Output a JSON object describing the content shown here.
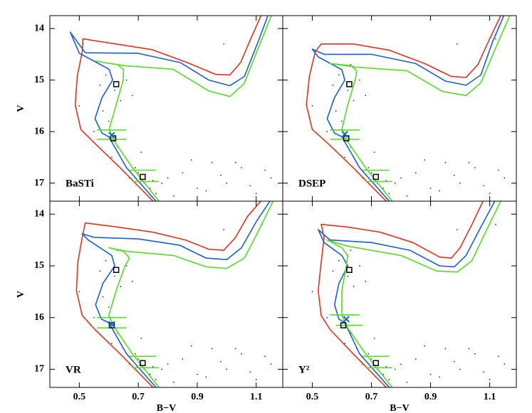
{
  "chart_data": [
    {
      "type": "line",
      "label": "BaSTi",
      "ylabel": "V",
      "xlim": [
        0.4,
        1.19
      ],
      "ylim": [
        17.35,
        13.75
      ],
      "xticks": [
        0.5,
        0.7,
        0.9,
        1.1
      ],
      "yticks": [
        14,
        15,
        16,
        17
      ],
      "stars": {
        "x": [
          0.62,
          0.64,
          0.6,
          0.66,
          0.63,
          0.58,
          0.61,
          0.65,
          0.67,
          0.7,
          0.72,
          0.74,
          0.69,
          0.76,
          0.78,
          0.8,
          0.85,
          0.9,
          0.95,
          1.0,
          1.05,
          1.1,
          1.15,
          0.82,
          0.88,
          0.93,
          0.98,
          1.03,
          1.08,
          1.13,
          0.57,
          0.59,
          0.63,
          0.68,
          0.55,
          0.71,
          0.75,
          0.5,
          1.12,
          0.99
        ],
        "values": [
          15.2,
          15.4,
          15.8,
          15.0,
          16.3,
          15.6,
          16.5,
          16.6,
          16.9,
          16.8,
          17.0,
          17.1,
          16.7,
          17.2,
          17.0,
          16.9,
          16.8,
          17.1,
          16.6,
          17.0,
          16.7,
          17.2,
          16.9,
          17.25,
          16.55,
          17.15,
          16.85,
          16.6,
          17.05,
          16.75,
          15.1,
          14.9,
          14.7,
          15.3,
          16.0,
          16.4,
          16.95,
          15.5,
          14.2,
          14.3
        ]
      },
      "series": [
        {
          "color": "#e8311a",
          "x": [
            0.75,
            0.64,
            0.553,
            0.505,
            0.486,
            0.493,
            0.51,
            0.512,
            0.625,
            0.746,
            0.866,
            0.963,
            1.011,
            1.047,
            1.083,
            1.12
          ],
          "values": [
            17.35,
            16.71,
            16.23,
            15.96,
            15.48,
            14.93,
            14.45,
            14.2,
            14.3,
            14.41,
            14.66,
            14.89,
            14.9,
            14.66,
            14.18,
            13.7
          ]
        },
        {
          "color": "#1a5fd6",
          "x": [
            0.76,
            0.66,
            0.6,
            0.577,
            0.553,
            0.577,
            0.613,
            0.601,
            0.5,
            0.469,
            0.52,
            0.698,
            0.842,
            0.939,
            1.011,
            1.06,
            1.107,
            1.143
          ],
          "values": [
            17.35,
            16.7,
            16.1,
            16.03,
            15.75,
            15.34,
            15.0,
            14.79,
            14.48,
            14.07,
            14.47,
            14.48,
            14.66,
            15.0,
            15.11,
            14.93,
            14.25,
            13.7
          ]
        },
        {
          "color": "#55dd22",
          "x": [
            0.77,
            0.68,
            0.62,
            0.601,
            0.625,
            0.649,
            0.65,
            0.63,
            0.553,
            0.65,
            0.818,
            0.939,
            1.011,
            1.059,
            1.107,
            1.155
          ],
          "values": [
            17.35,
            16.7,
            16.2,
            15.96,
            15.48,
            15.0,
            14.8,
            14.7,
            14.63,
            14.72,
            14.79,
            15.21,
            15.32,
            15.07,
            14.38,
            13.7
          ]
        },
        {
          "color": "#55dd22",
          "x": [
            0.56,
            0.66
          ],
          "values": [
            15.97,
            15.97
          ]
        },
        {
          "color": "#55dd22",
          "x": [
            0.56,
            0.66
          ],
          "values": [
            16.15,
            16.15
          ]
        },
        {
          "color": "#55dd22",
          "x": [
            0.67,
            0.76
          ],
          "values": [
            16.75,
            16.75
          ]
        },
        {
          "color": "#55dd22",
          "x": [
            0.68,
            0.77
          ],
          "values": [
            16.97,
            16.97
          ]
        }
      ],
      "squares": {
        "x": [
          0.625,
          0.615,
          0.715
        ],
        "values": [
          15.08,
          16.13,
          16.88
        ]
      },
      "crosses": {
        "color": "#1a5fd6",
        "x": [
          0.61
        ],
        "values": [
          16.07
        ]
      }
    },
    {
      "type": "line",
      "label": "DSEP",
      "xlim": [
        0.4,
        1.19
      ],
      "ylim": [
        17.35,
        13.75
      ],
      "xticks": [
        0.5,
        0.7,
        0.9,
        1.1
      ],
      "yticks": [
        14,
        15,
        16,
        17
      ],
      "stars": {
        "x": [
          0.62,
          0.64,
          0.6,
          0.66,
          0.63,
          0.58,
          0.61,
          0.65,
          0.67,
          0.7,
          0.72,
          0.74,
          0.69,
          0.76,
          0.78,
          0.8,
          0.85,
          0.9,
          0.95,
          1.0,
          1.05,
          1.1,
          1.15,
          0.82,
          0.88,
          0.93,
          0.98,
          1.03,
          1.08,
          1.13,
          0.57,
          0.59,
          0.63,
          0.68,
          0.55,
          0.71,
          0.75,
          0.5,
          1.12,
          0.99
        ],
        "values": [
          15.2,
          15.4,
          15.8,
          15.0,
          16.3,
          15.6,
          16.5,
          16.6,
          16.9,
          16.8,
          17.0,
          17.1,
          16.7,
          17.2,
          17.0,
          16.9,
          16.8,
          17.1,
          16.6,
          17.0,
          16.7,
          17.2,
          16.9,
          17.25,
          16.55,
          17.15,
          16.85,
          16.6,
          17.05,
          16.75,
          15.1,
          14.9,
          14.7,
          15.3,
          16.0,
          16.4,
          16.95,
          15.5,
          14.2,
          14.3
        ]
      },
      "series": [
        {
          "color": "#e8311a",
          "x": [
            0.75,
            0.64,
            0.553,
            0.5,
            0.48,
            0.49,
            0.51,
            0.53,
            0.64,
            0.76,
            0.88,
            0.97,
            1.02,
            1.06,
            1.1,
            1.14
          ],
          "values": [
            17.35,
            16.71,
            16.23,
            15.96,
            15.48,
            14.93,
            14.45,
            14.3,
            14.3,
            14.42,
            14.68,
            14.93,
            14.95,
            14.7,
            14.2,
            13.72
          ]
        },
        {
          "color": "#1a5fd6",
          "x": [
            0.76,
            0.66,
            0.6,
            0.575,
            0.55,
            0.575,
            0.61,
            0.6,
            0.52,
            0.5,
            0.54,
            0.7,
            0.85,
            0.95,
            1.02,
            1.07,
            1.11,
            1.15
          ],
          "values": [
            17.35,
            16.7,
            16.1,
            16.03,
            15.75,
            15.34,
            15.0,
            14.8,
            14.55,
            14.4,
            14.5,
            14.5,
            14.68,
            15.02,
            15.1,
            14.9,
            14.25,
            13.72
          ]
        },
        {
          "color": "#55dd22",
          "x": [
            0.77,
            0.68,
            0.62,
            0.6,
            0.62,
            0.645,
            0.65,
            0.63,
            0.56,
            0.65,
            0.82,
            0.94,
            1.02,
            1.07,
            1.12,
            1.17
          ],
          "values": [
            17.35,
            16.7,
            16.2,
            15.96,
            15.48,
            15.0,
            14.82,
            14.72,
            14.68,
            14.75,
            14.82,
            15.22,
            15.3,
            15.05,
            14.38,
            13.72
          ]
        },
        {
          "color": "#55dd22",
          "x": [
            0.56,
            0.66
          ],
          "values": [
            15.97,
            15.97
          ]
        },
        {
          "color": "#55dd22",
          "x": [
            0.56,
            0.66
          ],
          "values": [
            16.15,
            16.15
          ]
        },
        {
          "color": "#55dd22",
          "x": [
            0.67,
            0.76
          ],
          "values": [
            16.75,
            16.75
          ]
        },
        {
          "color": "#55dd22",
          "x": [
            0.68,
            0.77
          ],
          "values": [
            16.97,
            16.97
          ]
        }
      ],
      "squares": {
        "x": [
          0.625,
          0.615,
          0.715
        ],
        "values": [
          15.08,
          16.13,
          16.88
        ]
      },
      "crosses": {
        "color": "#1a5fd6",
        "x": [
          0.61
        ],
        "values": [
          16.05
        ]
      }
    },
    {
      "type": "line",
      "label": "VR",
      "ylabel": "V",
      "xlabel": "B−V",
      "xlim": [
        0.4,
        1.19
      ],
      "ylim": [
        17.35,
        13.75
      ],
      "xticks": [
        0.5,
        0.7,
        0.9,
        1.1
      ],
      "yticks": [
        14,
        15,
        16,
        17
      ],
      "stars": {
        "x": [
          0.62,
          0.64,
          0.6,
          0.66,
          0.63,
          0.58,
          0.61,
          0.65,
          0.67,
          0.7,
          0.72,
          0.74,
          0.69,
          0.76,
          0.78,
          0.8,
          0.85,
          0.9,
          0.95,
          1.0,
          1.05,
          1.1,
          1.15,
          0.82,
          0.88,
          0.93,
          0.98,
          1.03,
          1.08,
          1.13,
          0.57,
          0.59,
          0.63,
          0.68,
          0.55,
          0.71,
          0.75,
          0.5,
          1.12,
          0.99
        ],
        "values": [
          15.2,
          15.4,
          15.8,
          15.0,
          16.3,
          15.6,
          16.5,
          16.6,
          16.9,
          16.8,
          17.0,
          17.1,
          16.7,
          17.2,
          17.0,
          16.9,
          16.8,
          17.1,
          16.6,
          17.0,
          16.7,
          17.2,
          16.9,
          17.25,
          16.55,
          17.15,
          16.85,
          16.6,
          17.05,
          16.75,
          15.1,
          14.9,
          14.7,
          15.3,
          16.0,
          16.4,
          16.95,
          15.5,
          14.2,
          14.3
        ]
      },
      "series": [
        {
          "color": "#e8311a",
          "x": [
            0.75,
            0.64,
            0.553,
            0.51,
            0.49,
            0.495,
            0.51,
            0.52,
            0.63,
            0.75,
            0.86,
            0.94,
            0.99,
            1.03,
            1.07,
            1.12
          ],
          "values": [
            17.35,
            16.71,
            16.23,
            15.96,
            15.48,
            14.93,
            14.45,
            14.17,
            14.25,
            14.35,
            14.5,
            14.68,
            14.7,
            14.45,
            14.05,
            13.72
          ]
        },
        {
          "color": "#1a5fd6",
          "x": [
            0.76,
            0.66,
            0.6,
            0.575,
            0.555,
            0.58,
            0.62,
            0.61,
            0.53,
            0.51,
            0.55,
            0.7,
            0.84,
            0.93,
            1.0,
            1.05,
            1.1,
            1.15
          ],
          "values": [
            17.35,
            16.7,
            16.1,
            16.03,
            15.75,
            15.34,
            15.0,
            14.8,
            14.5,
            14.38,
            14.45,
            14.48,
            14.6,
            14.85,
            14.88,
            14.65,
            14.15,
            13.72
          ]
        },
        {
          "color": "#55dd22",
          "x": [
            0.77,
            0.68,
            0.62,
            0.6,
            0.625,
            0.655,
            0.67,
            0.65,
            0.6,
            0.66,
            0.82,
            0.93,
            1.0,
            1.06,
            1.11,
            1.16
          ],
          "values": [
            17.35,
            16.7,
            16.2,
            15.96,
            15.48,
            15.0,
            14.85,
            14.72,
            14.65,
            14.72,
            14.8,
            15.02,
            15.05,
            14.85,
            14.3,
            13.72
          ]
        },
        {
          "color": "#55dd22",
          "x": [
            0.56,
            0.66
          ],
          "values": [
            16.0,
            16.0
          ]
        },
        {
          "color": "#55dd22",
          "x": [
            0.56,
            0.66
          ],
          "values": [
            16.2,
            16.2
          ]
        },
        {
          "color": "#55dd22",
          "x": [
            0.67,
            0.76
          ],
          "values": [
            16.75,
            16.75
          ]
        },
        {
          "color": "#55dd22",
          "x": [
            0.68,
            0.77
          ],
          "values": [
            16.97,
            16.97
          ]
        }
      ],
      "squares": {
        "x": [
          0.625,
          0.61,
          0.715
        ],
        "values": [
          15.08,
          16.15,
          16.88
        ]
      },
      "crosses": {
        "color": "#1a5fd6",
        "x": [
          0.61
        ],
        "values": [
          16.13
        ]
      }
    },
    {
      "type": "line",
      "label": "Y²",
      "xlabel": "B−V",
      "xlim": [
        0.4,
        1.19
      ],
      "ylim": [
        17.35,
        13.75
      ],
      "xticks": [
        0.5,
        0.7,
        0.9,
        1.1
      ],
      "yticks": [
        14,
        15,
        16,
        17
      ],
      "stars": {
        "x": [
          0.62,
          0.64,
          0.6,
          0.66,
          0.63,
          0.58,
          0.61,
          0.65,
          0.67,
          0.7,
          0.72,
          0.74,
          0.69,
          0.76,
          0.78,
          0.8,
          0.85,
          0.9,
          0.95,
          1.0,
          1.05,
          1.1,
          1.15,
          0.82,
          0.88,
          0.93,
          0.98,
          1.03,
          1.08,
          1.13,
          0.57,
          0.59,
          0.63,
          0.68,
          0.55,
          0.71,
          0.75,
          0.5,
          1.12,
          0.99
        ],
        "values": [
          15.2,
          15.4,
          15.8,
          15.0,
          16.3,
          15.6,
          16.5,
          16.6,
          16.9,
          16.8,
          17.0,
          17.1,
          16.7,
          17.2,
          17.0,
          16.9,
          16.8,
          17.1,
          16.6,
          17.0,
          16.7,
          17.2,
          16.9,
          17.25,
          16.55,
          17.15,
          16.85,
          16.6,
          17.05,
          16.75,
          15.1,
          14.9,
          14.7,
          15.3,
          16.0,
          16.4,
          16.95,
          15.5,
          14.2,
          14.3
        ]
      },
      "series": [
        {
          "color": "#e8311a",
          "x": [
            0.75,
            0.64,
            0.56,
            0.53,
            0.52,
            0.53,
            0.54,
            0.53,
            0.62,
            0.73,
            0.84,
            0.93,
            0.97,
            1.0,
            1.04,
            1.08
          ],
          "values": [
            17.35,
            16.71,
            16.23,
            15.96,
            15.48,
            14.93,
            14.45,
            14.2,
            14.25,
            14.35,
            14.55,
            14.83,
            14.85,
            14.65,
            14.2,
            13.72
          ]
        },
        {
          "color": "#1a5fd6",
          "x": [
            0.76,
            0.66,
            0.61,
            0.59,
            0.575,
            0.59,
            0.62,
            0.6,
            0.54,
            0.52,
            0.56,
            0.7,
            0.83,
            0.93,
            0.98,
            1.02,
            1.07,
            1.12
          ],
          "values": [
            17.35,
            16.7,
            16.1,
            16.03,
            15.75,
            15.34,
            15.0,
            14.8,
            14.55,
            14.3,
            14.5,
            14.55,
            14.7,
            15.0,
            15.02,
            14.8,
            14.25,
            13.72
          ]
        },
        {
          "color": "#55dd22",
          "x": [
            0.77,
            0.68,
            0.62,
            0.6,
            0.6,
            0.615,
            0.62,
            0.6,
            0.55,
            0.62,
            0.8,
            0.92,
            0.99,
            1.04,
            1.09,
            1.14
          ],
          "values": [
            17.35,
            16.7,
            16.2,
            15.96,
            15.48,
            15.0,
            14.8,
            14.65,
            14.5,
            14.62,
            14.8,
            15.1,
            15.12,
            14.9,
            14.3,
            13.72
          ]
        },
        {
          "color": "#55dd22",
          "x": [
            0.56,
            0.66
          ],
          "values": [
            15.95,
            15.95
          ]
        },
        {
          "color": "#55dd22",
          "x": [
            0.58,
            0.67
          ],
          "values": [
            16.15,
            16.15
          ]
        },
        {
          "color": "#55dd22",
          "x": [
            0.67,
            0.76
          ],
          "values": [
            16.75,
            16.75
          ]
        },
        {
          "color": "#55dd22",
          "x": [
            0.68,
            0.77
          ],
          "values": [
            16.97,
            16.97
          ]
        }
      ],
      "squares": {
        "x": [
          0.625,
          0.605,
          0.715
        ],
        "values": [
          15.08,
          16.15,
          16.88
        ]
      },
      "crosses": {
        "color": "#1a5fd6",
        "x": [
          0.615
        ],
        "values": [
          16.03
        ]
      }
    }
  ]
}
